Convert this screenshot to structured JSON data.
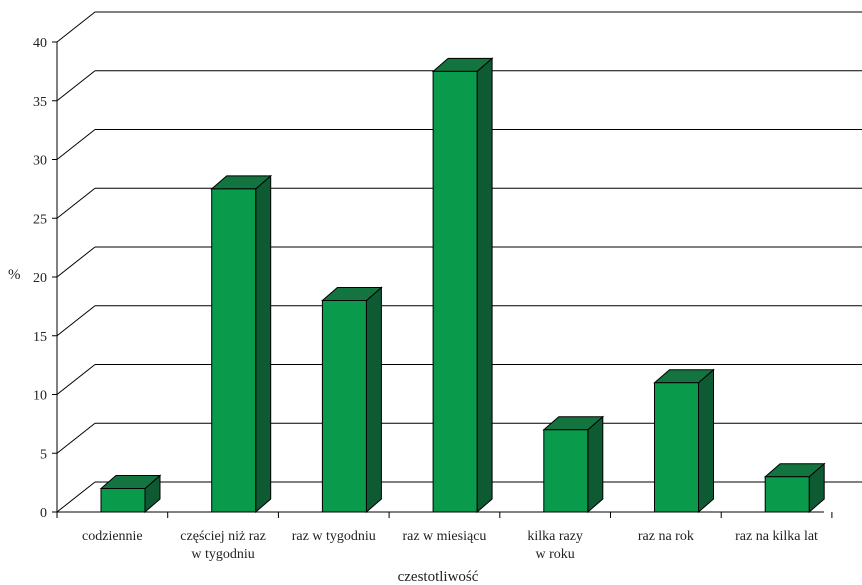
{
  "chart_data": {
    "type": "bar",
    "title": "",
    "xlabel": "czestotliwość",
    "ylabel": "%",
    "ylim": [
      0,
      40
    ],
    "yticks": [
      0,
      5,
      10,
      15,
      20,
      25,
      30,
      35,
      40
    ],
    "grid": true,
    "three_d": true,
    "colors": {
      "front": "#0a9a4c",
      "side": "#0d5a33",
      "top": "#13743f",
      "edge": "#000000"
    },
    "categories": [
      [
        "codziennie"
      ],
      [
        "częściej niż raz",
        "w tygodniu"
      ],
      [
        "raz w tygodniu"
      ],
      [
        "raz w miesiącu"
      ],
      [
        "kilka razy",
        "w roku"
      ],
      [
        "raz na rok"
      ],
      [
        "raz na kilka lat"
      ]
    ],
    "values": [
      2,
      27.5,
      18,
      37.5,
      7,
      11,
      3
    ]
  }
}
